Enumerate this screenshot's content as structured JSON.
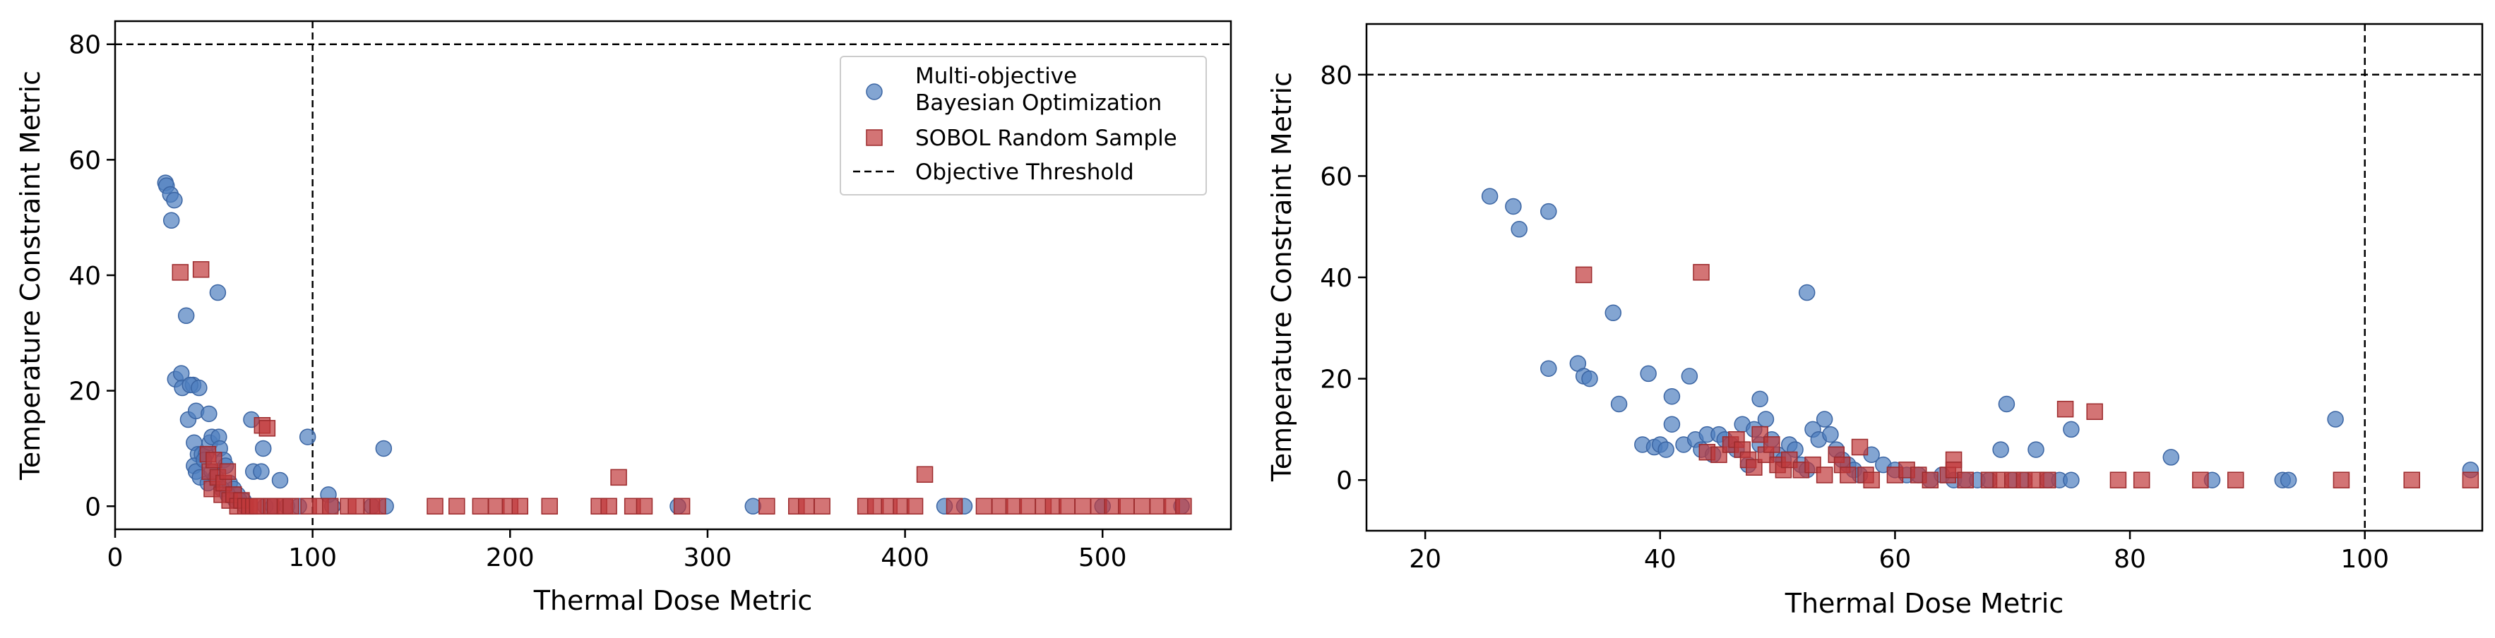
{
  "chart_data": [
    {
      "type": "scatter",
      "title": "",
      "xlabel": "Thermal Dose Metric",
      "ylabel": "Temperature Constraint Metric",
      "xlim": [
        0,
        565
      ],
      "ylim": [
        -4,
        84
      ],
      "xticks": [
        "0",
        "100",
        "200",
        "300",
        "400",
        "500"
      ],
      "yticks": [
        "0",
        "20",
        "40",
        "60",
        "80"
      ],
      "grid": false,
      "legend_position": "top-right",
      "legend": [
        {
          "label_lines": [
            "Multi-objective",
            "Bayesian Optimization"
          ],
          "marker": "circle",
          "color": "#4f7fbf"
        },
        {
          "label_lines": [
            "SOBOL Random Sample"
          ],
          "marker": "square",
          "color": "#c0393b"
        },
        {
          "label_lines": [
            "Objective Threshold"
          ],
          "marker": "dashed-line",
          "color": "#000000"
        }
      ],
      "threshold": {
        "x": 100,
        "y": 80
      },
      "series": [
        {
          "name": "Multi-objective Bayesian Optimization",
          "marker": "circle",
          "color": "#4f7fbf",
          "points": [
            [
              25.5,
              56
            ],
            [
              26,
              55.5
            ],
            [
              28,
              54
            ],
            [
              30,
              53
            ],
            [
              28.5,
              49.5
            ],
            [
              36,
              33
            ],
            [
              30.5,
              22
            ],
            [
              33.5,
              23
            ],
            [
              34,
              20.5
            ],
            [
              39.5,
              21
            ],
            [
              38,
              21
            ],
            [
              37,
              15
            ],
            [
              41,
              16.5
            ],
            [
              42.5,
              20.5
            ],
            [
              40,
              11
            ],
            [
              42,
              9
            ],
            [
              44,
              9
            ],
            [
              46,
              9
            ],
            [
              48,
              11
            ],
            [
              49,
              12
            ],
            [
              52,
              37
            ],
            [
              52.5,
              12
            ],
            [
              47.5,
              16
            ],
            [
              53,
              10
            ],
            [
              55,
              8
            ],
            [
              56,
              7
            ],
            [
              58,
              4
            ],
            [
              60,
              3
            ],
            [
              62,
              2
            ],
            [
              65,
              1
            ],
            [
              69,
              15
            ],
            [
              70,
              6
            ],
            [
              74,
              6
            ],
            [
              75,
              10
            ],
            [
              76,
              0
            ],
            [
              80,
              0
            ],
            [
              83.5,
              4.5
            ],
            [
              87,
              0
            ],
            [
              93,
              0
            ],
            [
              97.5,
              12
            ],
            [
              108,
              2
            ],
            [
              110,
              0
            ],
            [
              130,
              0
            ],
            [
              136,
              10
            ],
            [
              137,
              0
            ],
            [
              285,
              0
            ],
            [
              323,
              0
            ],
            [
              420,
              0
            ],
            [
              430,
              0
            ],
            [
              500,
              0
            ],
            [
              540,
              0
            ],
            [
              40,
              7
            ],
            [
              41,
              6
            ],
            [
              43,
              5
            ],
            [
              45,
              8
            ],
            [
              47,
              4
            ],
            [
              49,
              6
            ],
            [
              51,
              5
            ],
            [
              54,
              3
            ],
            [
              57,
              2
            ],
            [
              61,
              1
            ],
            [
              63,
              1
            ],
            [
              66,
              0
            ]
          ]
        },
        {
          "name": "SOBOL Random Sample",
          "marker": "square",
          "color": "#c0393b",
          "points": [
            [
              33,
              40.5
            ],
            [
              43.5,
              41
            ],
            [
              47,
              9
            ],
            [
              48,
              6
            ],
            [
              49,
              3
            ],
            [
              50,
              8
            ],
            [
              52,
              5
            ],
            [
              54,
              2
            ],
            [
              55,
              4
            ],
            [
              57,
              6
            ],
            [
              58,
              1
            ],
            [
              60,
              2
            ],
            [
              62,
              0
            ],
            [
              64,
              1
            ],
            [
              66,
              0
            ],
            [
              68,
              0
            ],
            [
              70,
              0
            ],
            [
              72,
              0
            ],
            [
              74.5,
              14
            ],
            [
              77,
              13.5
            ],
            [
              79,
              0
            ],
            [
              81,
              0
            ],
            [
              86,
              0
            ],
            [
              89,
              0
            ],
            [
              98,
              0
            ],
            [
              104,
              0
            ],
            [
              109,
              0
            ],
            [
              118,
              0
            ],
            [
              122,
              0
            ],
            [
              130,
              0
            ],
            [
              133,
              0
            ],
            [
              162,
              0
            ],
            [
              173,
              0
            ],
            [
              185,
              0
            ],
            [
              193,
              0
            ],
            [
              200,
              0
            ],
            [
              205,
              0
            ],
            [
              220,
              0
            ],
            [
              245,
              0
            ],
            [
              250,
              0
            ],
            [
              255,
              5
            ],
            [
              262,
              0
            ],
            [
              268,
              0
            ],
            [
              287,
              0
            ],
            [
              330,
              0
            ],
            [
              345,
              0
            ],
            [
              350,
              0
            ],
            [
              358,
              0
            ],
            [
              380,
              0
            ],
            [
              385,
              0
            ],
            [
              392,
              0
            ],
            [
              398,
              0
            ],
            [
              405,
              0
            ],
            [
              410,
              5.5
            ],
            [
              425,
              0
            ],
            [
              440,
              0
            ],
            [
              448,
              0
            ],
            [
              455,
              0
            ],
            [
              462,
              0
            ],
            [
              470,
              0
            ],
            [
              475,
              0
            ],
            [
              482,
              0
            ],
            [
              490,
              0
            ],
            [
              498,
              0
            ],
            [
              505,
              0
            ],
            [
              512,
              0
            ],
            [
              520,
              0
            ],
            [
              528,
              0
            ],
            [
              535,
              0
            ],
            [
              541,
              0
            ]
          ]
        }
      ]
    },
    {
      "type": "scatter",
      "title": "",
      "xlabel": "Thermal Dose Metric",
      "ylabel": "Temperature Constraint Metric",
      "xlim": [
        15,
        110
      ],
      "ylim": [
        -10,
        90
      ],
      "xticks": [
        "20",
        "40",
        "60",
        "80",
        "100"
      ],
      "yticks": [
        "0",
        "20",
        "40",
        "60",
        "80"
      ],
      "grid": false,
      "threshold": {
        "x": 100,
        "y": 80
      },
      "series": [
        {
          "name": "Multi-objective Bayesian Optimization",
          "marker": "circle",
          "color": "#4f7fbf",
          "points": [
            [
              25.5,
              56
            ],
            [
              27.5,
              54
            ],
            [
              28,
              49.5
            ],
            [
              30.5,
              53
            ],
            [
              30.5,
              22
            ],
            [
              33,
              23
            ],
            [
              33.5,
              20.5
            ],
            [
              34,
              20
            ],
            [
              36,
              33
            ],
            [
              36.5,
              15
            ],
            [
              38.5,
              7
            ],
            [
              39,
              21
            ],
            [
              39.5,
              6.5
            ],
            [
              40,
              7
            ],
            [
              40.5,
              6
            ],
            [
              41,
              11
            ],
            [
              41,
              16.5
            ],
            [
              42,
              7
            ],
            [
              42.5,
              20.5
            ],
            [
              43,
              8
            ],
            [
              43.5,
              6
            ],
            [
              44,
              9
            ],
            [
              44.5,
              5
            ],
            [
              45,
              9
            ],
            [
              45.5,
              8
            ],
            [
              46,
              7
            ],
            [
              46.5,
              6
            ],
            [
              47,
              11
            ],
            [
              47.5,
              3
            ],
            [
              48,
              10
            ],
            [
              48.5,
              7
            ],
            [
              48.5,
              16
            ],
            [
              49,
              12
            ],
            [
              49.5,
              8
            ],
            [
              50,
              5
            ],
            [
              50.5,
              4
            ],
            [
              51,
              7
            ],
            [
              51.5,
              6
            ],
            [
              52,
              3
            ],
            [
              52.5,
              2
            ],
            [
              52.5,
              37
            ],
            [
              53,
              10
            ],
            [
              53.5,
              8
            ],
            [
              54,
              12
            ],
            [
              54.5,
              9
            ],
            [
              55,
              6
            ],
            [
              55.5,
              4
            ],
            [
              56,
              3
            ],
            [
              56.5,
              2
            ],
            [
              57,
              1
            ],
            [
              58,
              5
            ],
            [
              59,
              3
            ],
            [
              60,
              2
            ],
            [
              61,
              1
            ],
            [
              62,
              1
            ],
            [
              63,
              0
            ],
            [
              64,
              1
            ],
            [
              65,
              0
            ],
            [
              66,
              0
            ],
            [
              67,
              0
            ],
            [
              68,
              0
            ],
            [
              69,
              6
            ],
            [
              69.5,
              15
            ],
            [
              70,
              0
            ],
            [
              71,
              0
            ],
            [
              72,
              6
            ],
            [
              73,
              0
            ],
            [
              74,
              0
            ],
            [
              75,
              10
            ],
            [
              75,
              0
            ],
            [
              83.5,
              4.5
            ],
            [
              87,
              0
            ],
            [
              93,
              0
            ],
            [
              93.5,
              0
            ],
            [
              97.5,
              12
            ],
            [
              109,
              2
            ]
          ]
        },
        {
          "name": "SOBOL Random Sample",
          "marker": "square",
          "color": "#c0393b",
          "points": [
            [
              33.5,
              40.5
            ],
            [
              43.5,
              41
            ],
            [
              44,
              5.5
            ],
            [
              45,
              5
            ],
            [
              46,
              7
            ],
            [
              46.5,
              8
            ],
            [
              47,
              6
            ],
            [
              47.5,
              4
            ],
            [
              48,
              2.5
            ],
            [
              48.5,
              9
            ],
            [
              49,
              5
            ],
            [
              49.5,
              7
            ],
            [
              50,
              3
            ],
            [
              50.5,
              2
            ],
            [
              51,
              4
            ],
            [
              52,
              2
            ],
            [
              53,
              3
            ],
            [
              54,
              1
            ],
            [
              55,
              5
            ],
            [
              55.5,
              3
            ],
            [
              56,
              1
            ],
            [
              57,
              6.5
            ],
            [
              57.5,
              1
            ],
            [
              58,
              0
            ],
            [
              60,
              1
            ],
            [
              61,
              2
            ],
            [
              62,
              1
            ],
            [
              63,
              0
            ],
            [
              64.5,
              1
            ],
            [
              65,
              4
            ],
            [
              65,
              2
            ],
            [
              66,
              0
            ],
            [
              68,
              0
            ],
            [
              69,
              0
            ],
            [
              70,
              0
            ],
            [
              71,
              0
            ],
            [
              72,
              0
            ],
            [
              73,
              0
            ],
            [
              74.5,
              14
            ],
            [
              77,
              13.5
            ],
            [
              79,
              0
            ],
            [
              81,
              0
            ],
            [
              86,
              0
            ],
            [
              89,
              0
            ],
            [
              98,
              0
            ],
            [
              104,
              0
            ],
            [
              109,
              0
            ]
          ]
        }
      ]
    }
  ]
}
